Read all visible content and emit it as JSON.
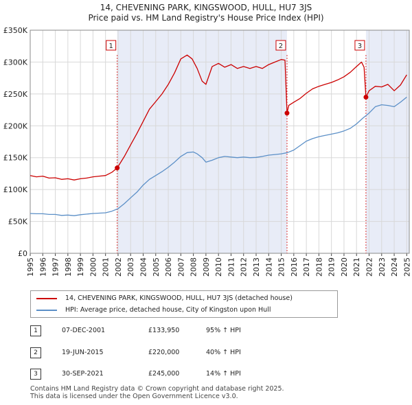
{
  "header": {
    "title_line1": "14, CHEVENING PARK, KINGSWOOD, HULL, HU7 3JS",
    "title_line2": "Price paid vs. HM Land Registry's House Price Index (HPI)"
  },
  "chart_data": {
    "type": "line",
    "title": "14, CHEVENING PARK, KINGSWOOD, HULL, HU7 3JS",
    "subtitle": "Price paid vs. HM Land Registry's House Price Index (HPI)",
    "xlabel": "",
    "ylabel": "",
    "xlim": [
      1995,
      2025.2
    ],
    "ylim": [
      0,
      350000
    ],
    "x_ticks": [
      1995,
      1996,
      1997,
      1998,
      1999,
      2000,
      2001,
      2002,
      2003,
      2004,
      2005,
      2006,
      2007,
      2008,
      2009,
      2010,
      2011,
      2012,
      2013,
      2014,
      2015,
      2016,
      2017,
      2018,
      2019,
      2020,
      2021,
      2022,
      2023,
      2024,
      2025
    ],
    "y_ticks": [
      {
        "value": 0,
        "label": "£0"
      },
      {
        "value": 50000,
        "label": "£50K"
      },
      {
        "value": 100000,
        "label": "£100K"
      },
      {
        "value": 150000,
        "label": "£150K"
      },
      {
        "value": 200000,
        "label": "£200K"
      },
      {
        "value": 250000,
        "label": "£250K"
      },
      {
        "value": 300000,
        "label": "£300K"
      },
      {
        "value": 350000,
        "label": "£350K"
      }
    ],
    "grid": true,
    "shaded_periods": [
      [
        2001.93,
        2015.46
      ],
      [
        2021.75,
        2025.2
      ]
    ],
    "series": [
      {
        "name": "14, CHEVENING PARK, KINGSWOOD, HULL, HU7 3JS (detached house)",
        "color": "#cc0000",
        "x": [
          1995.0,
          1995.5,
          1996.0,
          1996.5,
          1997.0,
          1997.5,
          1998.0,
          1998.5,
          1999.0,
          1999.5,
          2000.0,
          2000.5,
          2001.0,
          2001.5,
          2001.93,
          2002.5,
          2003.0,
          2003.5,
          2004.0,
          2004.5,
          2005.0,
          2005.5,
          2006.0,
          2006.5,
          2007.0,
          2007.5,
          2007.9,
          2008.3,
          2008.7,
          2009.0,
          2009.5,
          2010.0,
          2010.5,
          2011.0,
          2011.5,
          2012.0,
          2012.5,
          2013.0,
          2013.5,
          2014.0,
          2014.5,
          2015.0,
          2015.3,
          2015.46,
          2015.6,
          2016.0,
          2016.5,
          2017.0,
          2017.5,
          2018.0,
          2018.5,
          2019.0,
          2019.5,
          2020.0,
          2020.5,
          2021.0,
          2021.4,
          2021.6,
          2021.75,
          2022.0,
          2022.5,
          2023.0,
          2023.5,
          2024.0,
          2024.5,
          2025.0
        ],
        "y": [
          122000,
          120000,
          121000,
          118000,
          118500,
          116000,
          117000,
          115000,
          117000,
          118000,
          120000,
          121000,
          122000,
          127000,
          133950,
          152000,
          170000,
          188000,
          207000,
          226000,
          238000,
          250000,
          265000,
          283000,
          305000,
          311000,
          305000,
          290000,
          270000,
          265000,
          293000,
          298000,
          292000,
          296000,
          290000,
          293000,
          290000,
          293000,
          290000,
          296000,
          300000,
          304000,
          303000,
          220000,
          232000,
          237000,
          243000,
          251000,
          258000,
          262000,
          265000,
          268000,
          272000,
          277000,
          284000,
          293000,
          300000,
          292000,
          245000,
          255000,
          262000,
          261000,
          265000,
          255000,
          264000,
          280000
        ]
      },
      {
        "name": "HPI: Average price, detached house, City of Kingston upon Hull",
        "color": "#5b8fc7",
        "x": [
          1995.0,
          1995.5,
          1996.0,
          1996.5,
          1997.0,
          1997.5,
          1998.0,
          1998.5,
          1999.0,
          1999.5,
          2000.0,
          2000.5,
          2001.0,
          2001.5,
          2002.0,
          2002.5,
          2003.0,
          2003.5,
          2004.0,
          2004.5,
          2005.0,
          2005.5,
          2006.0,
          2006.5,
          2007.0,
          2007.5,
          2008.0,
          2008.3,
          2008.7,
          2009.0,
          2009.5,
          2010.0,
          2010.5,
          2011.0,
          2011.5,
          2012.0,
          2012.5,
          2013.0,
          2013.5,
          2014.0,
          2014.5,
          2015.0,
          2015.5,
          2016.0,
          2016.5,
          2017.0,
          2017.5,
          2018.0,
          2018.5,
          2019.0,
          2019.5,
          2020.0,
          2020.5,
          2021.0,
          2021.5,
          2022.0,
          2022.5,
          2023.0,
          2023.5,
          2024.0,
          2024.5,
          2025.0
        ],
        "y": [
          62500,
          62000,
          62000,
          61000,
          61000,
          59500,
          60000,
          59000,
          60500,
          61500,
          62500,
          63000,
          63500,
          66000,
          70000,
          78000,
          87000,
          96000,
          107000,
          116000,
          122000,
          128000,
          135000,
          143000,
          152000,
          158000,
          159000,
          156000,
          150000,
          143000,
          146000,
          150000,
          152000,
          151000,
          150000,
          151000,
          150000,
          150500,
          152000,
          154000,
          155000,
          156000,
          158000,
          162000,
          169000,
          176000,
          180000,
          183000,
          185000,
          187000,
          189000,
          192000,
          196000,
          203000,
          212000,
          220000,
          230000,
          233000,
          232000,
          230000,
          237000,
          245000
        ]
      }
    ],
    "sales": [
      {
        "num": "1",
        "x": 2001.93,
        "y": 133950
      },
      {
        "num": "2",
        "x": 2015.46,
        "y": 220000
      },
      {
        "num": "3",
        "x": 2021.75,
        "y": 245000
      }
    ]
  },
  "legend": {
    "property_label": "14, CHEVENING PARK, KINGSWOOD, HULL, HU7 3JS (detached house)",
    "hpi_label": "HPI: Average price, detached house, City of Kingston upon Hull",
    "property_color": "#cc0000",
    "hpi_color": "#5b8fc7"
  },
  "transactions": [
    {
      "num": "1",
      "date": "07-DEC-2001",
      "price": "£133,950",
      "hpi": "95% ↑ HPI"
    },
    {
      "num": "2",
      "date": "19-JUN-2015",
      "price": "£220,000",
      "hpi": "40% ↑ HPI"
    },
    {
      "num": "3",
      "date": "30-SEP-2021",
      "price": "£245,000",
      "hpi": "14% ↑ HPI"
    }
  ],
  "footer": {
    "line1": "Contains HM Land Registry data © Crown copyright and database right 2025.",
    "line2": "This data is licensed under the Open Government Licence v3.0."
  }
}
